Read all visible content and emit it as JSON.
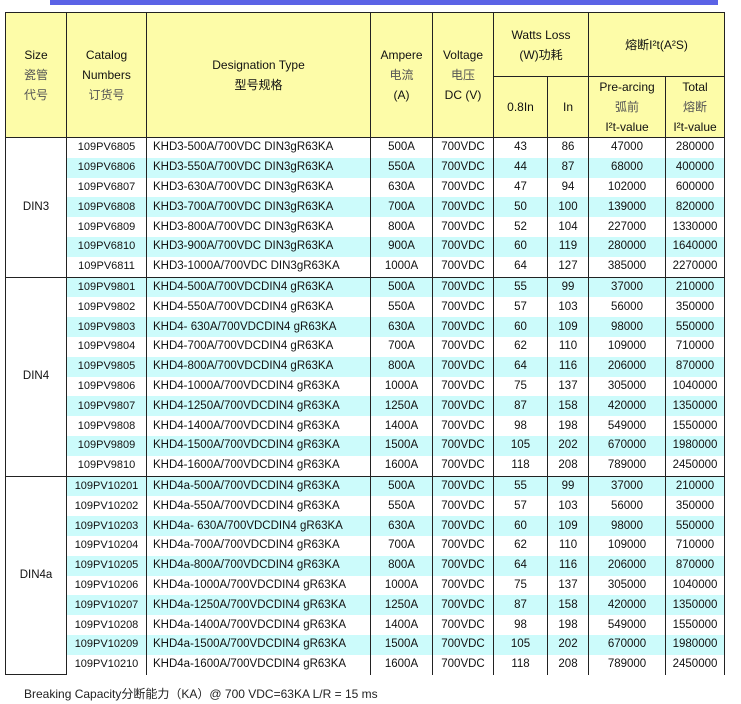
{
  "header": {
    "size": [
      "Size",
      "瓷管",
      "代号"
    ],
    "catalog": [
      "Catalog",
      "Numbers",
      "订货号"
    ],
    "designation": [
      "Designation Type",
      "型号规格"
    ],
    "ampere": [
      "Ampere",
      "电流",
      "(A)"
    ],
    "voltage": [
      "Voltage",
      "电压",
      "DC (V)"
    ],
    "watts": [
      "Watts Loss",
      "(W)功耗"
    ],
    "watts_sub": [
      "0.8In",
      "In"
    ],
    "i2t": "熔断I²t(A²S)",
    "prearcing": [
      "Pre-arcing",
      "弧前",
      "I²t-value"
    ],
    "total": [
      "Total",
      "熔断",
      "I²t-value"
    ]
  },
  "groups": [
    {
      "size": "DIN3",
      "rows": [
        {
          "catalog": "109PV6805",
          "designation": "KHD3-500A/700VDC DIN3gR63KA",
          "ampere": "500A",
          "voltage": "700VDC",
          "w08": "43",
          "win": "86",
          "pre": "47000",
          "total": "280000",
          "shaded": false
        },
        {
          "catalog": "109PV6806",
          "designation": "KHD3-550A/700VDC DIN3gR63KA",
          "ampere": "550A",
          "voltage": "700VDC",
          "w08": "44",
          "win": "87",
          "pre": "68000",
          "total": "400000",
          "shaded": true
        },
        {
          "catalog": "109PV6807",
          "designation": "KHD3-630A/700VDC DIN3gR63KA",
          "ampere": "630A",
          "voltage": "700VDC",
          "w08": "47",
          "win": "94",
          "pre": "102000",
          "total": "600000",
          "shaded": false
        },
        {
          "catalog": "109PV6808",
          "designation": "KHD3-700A/700VDC DIN3gR63KA",
          "ampere": "700A",
          "voltage": "700VDC",
          "w08": "50",
          "win": "100",
          "pre": "139000",
          "total": "820000",
          "shaded": true
        },
        {
          "catalog": "109PV6809",
          "designation": "KHD3-800A/700VDC DIN3gR63KA",
          "ampere": "800A",
          "voltage": "700VDC",
          "w08": "52",
          "win": "104",
          "pre": "227000",
          "total": "1330000",
          "shaded": false
        },
        {
          "catalog": "109PV6810",
          "designation": "KHD3-900A/700VDC DIN3gR63KA",
          "ampere": "900A",
          "voltage": "700VDC",
          "w08": "60",
          "win": "119",
          "pre": "280000",
          "total": "1640000",
          "shaded": true
        },
        {
          "catalog": "109PV6811",
          "designation": "KHD3-1000A/700VDC DIN3gR63KA",
          "ampere": "1000A",
          "voltage": "700VDC",
          "w08": "64",
          "win": "127",
          "pre": "385000",
          "total": "2270000",
          "shaded": false
        }
      ]
    },
    {
      "size": "DIN4",
      "rows": [
        {
          "catalog": "109PV9801",
          "designation": "KHD4-500A/700VDCDIN4 gR63KA",
          "ampere": "500A",
          "voltage": "700VDC",
          "w08": "55",
          "win": "99",
          "pre": "37000",
          "total": "210000",
          "shaded": true
        },
        {
          "catalog": "109PV9802",
          "designation": "KHD4-550A/700VDCDIN4 gR63KA",
          "ampere": "550A",
          "voltage": "700VDC",
          "w08": "57",
          "win": "103",
          "pre": "56000",
          "total": "350000",
          "shaded": false
        },
        {
          "catalog": "109PV9803",
          "designation": "KHD4- 630A/700VDCDIN4 gR63KA",
          "ampere": "630A",
          "voltage": "700VDC",
          "w08": "60",
          "win": "109",
          "pre": "98000",
          "total": "550000",
          "shaded": true
        },
        {
          "catalog": "109PV9804",
          "designation": "KHD4-700A/700VDCDIN4 gR63KA",
          "ampere": "700A",
          "voltage": "700VDC",
          "w08": "62",
          "win": "110",
          "pre": "109000",
          "total": "710000",
          "shaded": false
        },
        {
          "catalog": "109PV9805",
          "designation": "KHD4-800A/700VDCDIN4 gR63KA",
          "ampere": "800A",
          "voltage": "700VDC",
          "w08": "64",
          "win": "116",
          "pre": "206000",
          "total": "870000",
          "shaded": true
        },
        {
          "catalog": "109PV9806",
          "designation": "KHD4-1000A/700VDCDIN4 gR63KA",
          "ampere": "1000A",
          "voltage": "700VDC",
          "w08": "75",
          "win": "137",
          "pre": "305000",
          "total": "1040000",
          "shaded": false
        },
        {
          "catalog": "109PV9807",
          "designation": "KHD4-1250A/700VDCDIN4 gR63KA",
          "ampere": "1250A",
          "voltage": "700VDC",
          "w08": "87",
          "win": "158",
          "pre": "420000",
          "total": "1350000",
          "shaded": true
        },
        {
          "catalog": "109PV9808",
          "designation": "KHD4-1400A/700VDCDIN4 gR63KA",
          "ampere": "1400A",
          "voltage": "700VDC",
          "w08": "98",
          "win": "198",
          "pre": "549000",
          "total": "1550000",
          "shaded": false
        },
        {
          "catalog": "109PV9809",
          "designation": "KHD4-1500A/700VDCDIN4 gR63KA",
          "ampere": "1500A",
          "voltage": "700VDC",
          "w08": "105",
          "win": "202",
          "pre": "670000",
          "total": "1980000",
          "shaded": true
        },
        {
          "catalog": "109PV9810",
          "designation": "KHD4-1600A/700VDCDIN4 gR63KA",
          "ampere": "1600A",
          "voltage": "700VDC",
          "w08": "118",
          "win": "208",
          "pre": "789000",
          "total": "2450000",
          "shaded": false
        }
      ]
    },
    {
      "size": "DIN4a",
      "rows": [
        {
          "catalog": "109PV10201",
          "designation": "KHD4a-500A/700VDCDIN4 gR63KA",
          "ampere": "500A",
          "voltage": "700VDC",
          "w08": "55",
          "win": "99",
          "pre": "37000",
          "total": "210000",
          "shaded": true
        },
        {
          "catalog": "109PV10202",
          "designation": "KHD4a-550A/700VDCDIN4 gR63KA",
          "ampere": "550A",
          "voltage": "700VDC",
          "w08": "57",
          "win": "103",
          "pre": "56000",
          "total": "350000",
          "shaded": false
        },
        {
          "catalog": "109PV10203",
          "designation": "KHD4a- 630A/700VDCDIN4 gR63KA",
          "ampere": "630A",
          "voltage": "700VDC",
          "w08": "60",
          "win": "109",
          "pre": "98000",
          "total": "550000",
          "shaded": true
        },
        {
          "catalog": "109PV10204",
          "designation": "KHD4a-700A/700VDCDIN4 gR63KA",
          "ampere": "700A",
          "voltage": "700VDC",
          "w08": "62",
          "win": "110",
          "pre": "109000",
          "total": "710000",
          "shaded": false
        },
        {
          "catalog": "109PV10205",
          "designation": "KHD4a-800A/700VDCDIN4 gR63KA",
          "ampere": "800A",
          "voltage": "700VDC",
          "w08": "64",
          "win": "116",
          "pre": "206000",
          "total": "870000",
          "shaded": true
        },
        {
          "catalog": "109PV10206",
          "designation": "KHD4a-1000A/700VDCDIN4 gR63KA",
          "ampere": "1000A",
          "voltage": "700VDC",
          "w08": "75",
          "win": "137",
          "pre": "305000",
          "total": "1040000",
          "shaded": false
        },
        {
          "catalog": "109PV10207",
          "designation": "KHD4a-1250A/700VDCDIN4 gR63KA",
          "ampere": "1250A",
          "voltage": "700VDC",
          "w08": "87",
          "win": "158",
          "pre": "420000",
          "total": "1350000",
          "shaded": true
        },
        {
          "catalog": "109PV10208",
          "designation": "KHD4a-1400A/700VDCDIN4 gR63KA",
          "ampere": "1400A",
          "voltage": "700VDC",
          "w08": "98",
          "win": "198",
          "pre": "549000",
          "total": "1550000",
          "shaded": false
        },
        {
          "catalog": "109PV10209",
          "designation": "KHD4a-1500A/700VDCDIN4 gR63KA",
          "ampere": "1500A",
          "voltage": "700VDC",
          "w08": "105",
          "win": "202",
          "pre": "670000",
          "total": "1980000",
          "shaded": true
        },
        {
          "catalog": "109PV10210",
          "designation": "KHD4a-1600A/700VDCDIN4 gR63KA",
          "ampere": "1600A",
          "voltage": "700VDC",
          "w08": "118",
          "win": "208",
          "pre": "789000",
          "total": "2450000",
          "shaded": false
        }
      ]
    }
  ],
  "footer": "Breaking Capacity分断能力（KA）@ 700 VDC=63KA   L/R = 15 ms",
  "colors": {
    "header_bg": "#fdfca8",
    "row_shade": "#ccfbfb",
    "top_bar": "#5b63e6"
  }
}
